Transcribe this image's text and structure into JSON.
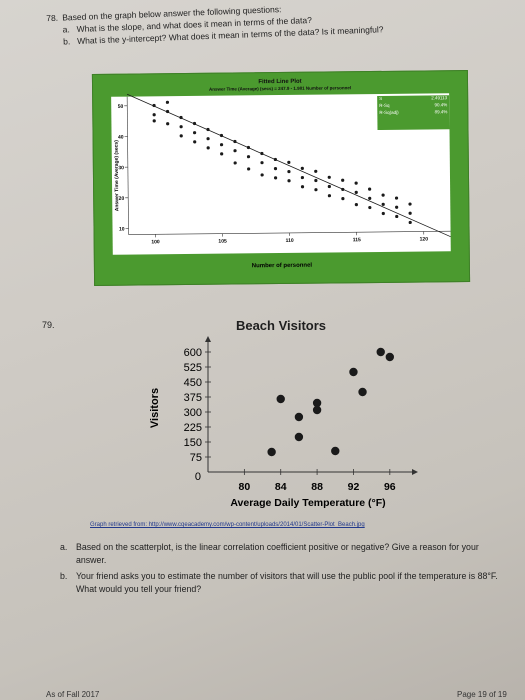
{
  "q78": {
    "number": "78.",
    "stem": "Based on the graph below answer the following questions:",
    "parts": [
      {
        "letter": "a.",
        "text": "What is the slope, and what does it mean in terms of the data?"
      },
      {
        "letter": "b.",
        "text": "What is the y-intercept? What does it mean in terms of the data? Is it meaningful?"
      }
    ]
  },
  "fitted_plot": {
    "title": "Fitted Line Plot",
    "equation": "Answer Time (Average) (secs) = 247.9 - 1.981 Number of personnel",
    "ylabel": "Answer Time (Average) (secs)",
    "xlabel": "Number of personnel",
    "stats": [
      {
        "key": "S",
        "value": "2.49113"
      },
      {
        "key": "R-Sq",
        "value": "90.4%"
      },
      {
        "key": "R-Sq(adj)",
        "value": "89.4%"
      }
    ],
    "colors": {
      "frame": "#4b9a2f",
      "panel": "#ffffff",
      "line": "#1a1a1a",
      "points": "#1a1a1a"
    }
  },
  "q79": {
    "number": "79.",
    "source": "Graph retrieved from: http://www.cqeacademy.com/wp-content/uploads/2014/01/Scatter-Plot_Beach.jpg",
    "parts": [
      {
        "letter": "a.",
        "text": "Based on the scatterplot, is the linear correlation coefficient positive or negative? Give a reason for your answer."
      },
      {
        "letter": "b.",
        "text": "Your friend asks you to estimate the number of visitors that will use the public pool if the temperature is 88°F. What would you tell your friend?"
      }
    ]
  },
  "footer": {
    "left": "As of Fall 2017",
    "right": "Page 19 of 19"
  },
  "chart_data": [
    {
      "type": "scatter",
      "title": "Fitted Line Plot",
      "xlabel": "Number of personnel",
      "ylabel": "Answer Time (Average) (secs)",
      "xlim": [
        98,
        122
      ],
      "ylim": [
        8,
        53
      ],
      "xticks": [
        100,
        105,
        110,
        115,
        120
      ],
      "yticks": [
        10,
        20,
        30,
        40,
        50
      ],
      "fit": {
        "intercept": 247.9,
        "slope": -1.981
      },
      "points": [
        [
          100,
          50
        ],
        [
          100,
          47
        ],
        [
          100,
          45
        ],
        [
          101,
          51
        ],
        [
          101,
          48
        ],
        [
          101,
          44
        ],
        [
          102,
          46
        ],
        [
          102,
          43
        ],
        [
          102,
          40
        ],
        [
          103,
          44
        ],
        [
          103,
          41
        ],
        [
          103,
          38
        ],
        [
          104,
          42
        ],
        [
          104,
          39
        ],
        [
          104,
          36
        ],
        [
          105,
          40
        ],
        [
          105,
          37
        ],
        [
          105,
          34
        ],
        [
          106,
          38
        ],
        [
          106,
          35
        ],
        [
          106,
          31
        ],
        [
          107,
          36
        ],
        [
          107,
          33
        ],
        [
          107,
          29
        ],
        [
          108,
          34
        ],
        [
          108,
          31
        ],
        [
          108,
          27
        ],
        [
          109,
          32
        ],
        [
          109,
          29
        ],
        [
          109,
          26
        ],
        [
          110,
          31
        ],
        [
          110,
          28
        ],
        [
          110,
          25
        ],
        [
          111,
          29
        ],
        [
          111,
          26
        ],
        [
          111,
          23
        ],
        [
          112,
          28
        ],
        [
          112,
          25
        ],
        [
          112,
          22
        ],
        [
          113,
          26
        ],
        [
          113,
          23
        ],
        [
          113,
          20
        ],
        [
          114,
          25
        ],
        [
          114,
          22
        ],
        [
          114,
          19
        ],
        [
          115,
          24
        ],
        [
          115,
          21
        ],
        [
          115,
          17
        ],
        [
          116,
          22
        ],
        [
          116,
          19
        ],
        [
          116,
          16
        ],
        [
          117,
          20
        ],
        [
          117,
          17
        ],
        [
          117,
          14
        ],
        [
          118,
          19
        ],
        [
          118,
          16
        ],
        [
          118,
          13
        ],
        [
          119,
          17
        ],
        [
          119,
          14
        ],
        [
          119,
          11
        ]
      ]
    },
    {
      "type": "scatter",
      "title": "Beach Visitors",
      "xlabel": "Average Daily Temperature (°F)",
      "ylabel": "Visitors",
      "xlim": [
        76,
        98
      ],
      "ylim": [
        0,
        640
      ],
      "xticks": [
        80,
        84,
        88,
        92,
        96
      ],
      "yticks": [
        75,
        150,
        225,
        300,
        375,
        450,
        525,
        600
      ],
      "points": [
        [
          83,
          100
        ],
        [
          86,
          175
        ],
        [
          86,
          275
        ],
        [
          88,
          310
        ],
        [
          88,
          345
        ],
        [
          90,
          105
        ],
        [
          92,
          500
        ],
        [
          93,
          400
        ],
        [
          95,
          600
        ],
        [
          96,
          575
        ],
        [
          84,
          365
        ]
      ]
    }
  ]
}
